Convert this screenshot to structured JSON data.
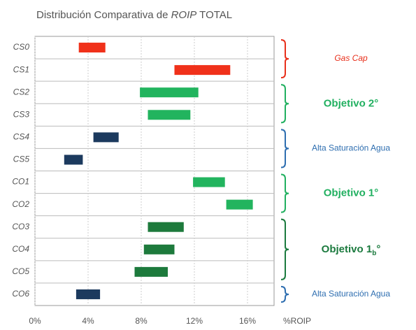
{
  "chart_data": {
    "type": "range-bar",
    "title_parts": [
      "Distribución Comparativa de ",
      "ROIP",
      " TOTAL"
    ],
    "x_label": "%ROIP",
    "xlim": [
      0,
      18
    ],
    "xticks": [
      {
        "value": 0,
        "label": "0%"
      },
      {
        "value": 4,
        "label": "4%"
      },
      {
        "value": 8,
        "label": "8%"
      },
      {
        "value": 12,
        "label": "12%"
      },
      {
        "value": 16,
        "label": "16%"
      }
    ],
    "grid": true,
    "groups": [
      {
        "label": "Gas Cap",
        "label_color": "#e8301c",
        "color": "#f0311a",
        "categories": [
          "CS0",
          "CS1"
        ],
        "start": [
          3.3,
          10.5
        ],
        "end": [
          5.3,
          14.7
        ]
      },
      {
        "label": "Objetivo 2°",
        "label_color": "#21b060",
        "color": "#22b45e",
        "categories": [
          "CS2",
          "CS3"
        ],
        "start": [
          7.9,
          8.5
        ],
        "end": [
          12.3,
          11.7
        ]
      },
      {
        "label": "Alta Saturación Agua",
        "label_color": "#2e6eb0",
        "color": "#1c3a5e",
        "categories": [
          "CS4",
          "CS5"
        ],
        "start": [
          4.4,
          2.2
        ],
        "end": [
          6.3,
          3.6
        ]
      },
      {
        "label": "Objetivo 1°",
        "label_color": "#21b060",
        "color": "#22b45e",
        "categories": [
          "CO1",
          "CO2"
        ],
        "start": [
          11.9,
          14.4
        ],
        "end": [
          14.3,
          16.4
        ]
      },
      {
        "label": "Objetivo 1",
        "subscript": "b",
        "suffix": "°",
        "label_color": "#1b7a3e",
        "color": "#1d7a3c",
        "categories": [
          "CO3",
          "CO4",
          "CO5"
        ],
        "start": [
          8.5,
          8.2,
          7.5
        ],
        "end": [
          11.2,
          10.5,
          10.0
        ]
      },
      {
        "label": "Alta Saturación Agua",
        "label_color": "#2e6eb0",
        "color": "#1c3a5e",
        "categories": [
          "CO6"
        ],
        "start": [
          3.1
        ],
        "end": [
          4.9
        ]
      }
    ]
  }
}
